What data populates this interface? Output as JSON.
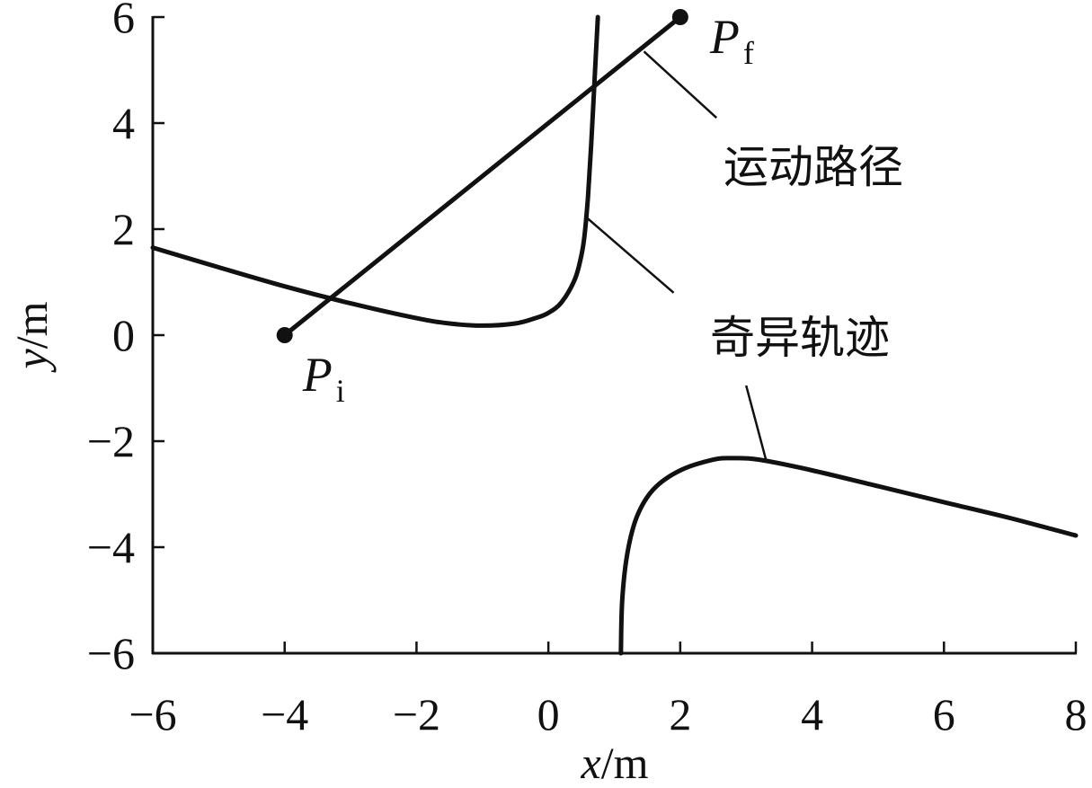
{
  "chart_data": {
    "type": "line",
    "xlabel": {
      "var": "x",
      "unit": "/m"
    },
    "ylabel": {
      "var": "y",
      "unit": "/m"
    },
    "xlim": [
      -6,
      8
    ],
    "ylim": [
      -6,
      6
    ],
    "xticks": [
      -6,
      -4,
      -2,
      0,
      2,
      4,
      6,
      8
    ],
    "yticks": [
      -6,
      -4,
      -2,
      0,
      2,
      4,
      6
    ],
    "xtick_labels": [
      "−6",
      "−4",
      "−2",
      "0",
      "2",
      "4",
      "6",
      "8"
    ],
    "ytick_labels": [
      "−6",
      "−4",
      "−2",
      "0",
      "2",
      "4",
      "6"
    ],
    "grid": false,
    "series": [
      {
        "kind": "motion_path",
        "x": [
          -4,
          2
        ],
        "y": [
          0,
          6
        ]
      },
      {
        "kind": "singular_trajectory_upper",
        "x": [
          -6,
          -5,
          -4,
          -3,
          -2,
          -1.5,
          -1,
          -0.5,
          -0.2,
          0,
          0.2,
          0.4,
          0.5,
          0.55,
          0.6,
          0.65,
          0.7,
          0.75
        ],
        "y": [
          1.65,
          1.28,
          0.92,
          0.6,
          0.32,
          0.22,
          0.18,
          0.22,
          0.32,
          0.42,
          0.62,
          1.05,
          1.5,
          1.9,
          2.6,
          3.6,
          4.8,
          6.0
        ]
      },
      {
        "kind": "singular_trajectory_lower",
        "x": [
          1.1,
          1.12,
          1.2,
          1.35,
          1.6,
          2.0,
          2.5,
          2.8,
          3.2,
          4.0,
          5.0,
          6.0,
          7.0,
          8.0
        ],
        "y": [
          -6.0,
          -5.0,
          -4.1,
          -3.4,
          -2.9,
          -2.55,
          -2.35,
          -2.32,
          -2.35,
          -2.55,
          -2.85,
          -3.15,
          -3.45,
          -3.78
        ]
      }
    ],
    "endpoints": [
      {
        "label_main": "P",
        "label_sub": "i",
        "x": -4,
        "y": 0
      },
      {
        "label_main": "P",
        "label_sub": "f",
        "x": 2,
        "y": 6
      }
    ],
    "annotations": [
      {
        "text": "运动路径",
        "target_x": 1.45,
        "target_y": 5.35,
        "elbow_x": 2.55,
        "elbow_y": 4.1
      },
      {
        "text": "奇异轨迹",
        "target_x": 0.55,
        "target_y": 2.25,
        "elbow_x": 1.9,
        "elbow_y": 0.8
      },
      {
        "text": "",
        "target_x": 3.3,
        "target_y": -2.35,
        "elbow_x": 3.0,
        "elbow_y": -0.95
      }
    ]
  }
}
